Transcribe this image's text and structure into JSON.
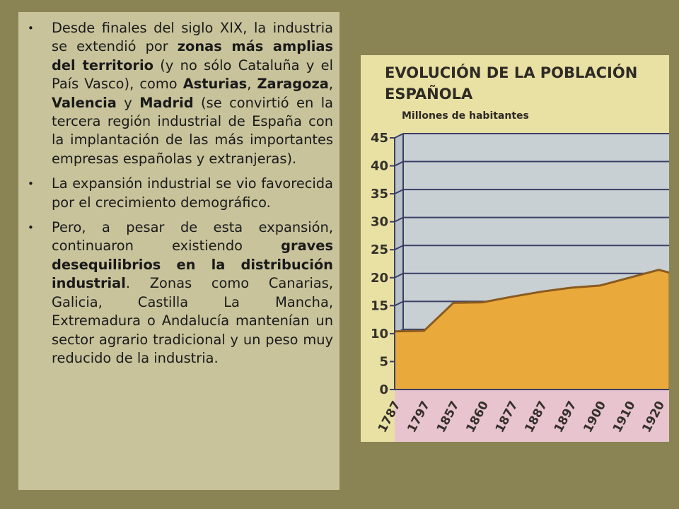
{
  "text": {
    "bullets": [
      {
        "parts": [
          {
            "t": "Desde finales del siglo XIX, la industria se extendió por ",
            "b": false
          },
          {
            "t": "zonas más amplias del territorio",
            "b": true
          },
          {
            "t": " (y no sólo Cataluña y el País Vasco), como ",
            "b": false
          },
          {
            "t": "Asturias",
            "b": true
          },
          {
            "t": ", ",
            "b": false
          },
          {
            "t": "Zaragoza",
            "b": true
          },
          {
            "t": ", ",
            "b": false
          },
          {
            "t": "Valencia",
            "b": true
          },
          {
            "t": " y ",
            "b": false
          },
          {
            "t": "Madrid",
            "b": true
          },
          {
            "t": " (se convirtió en la tercera región industrial de España con la implantación de las más importantes empresas españolas y extranjeras).",
            "b": false
          }
        ]
      },
      {
        "parts": [
          {
            "t": "La expansión industrial se vio favorecida por el crecimiento demográfico.",
            "b": false
          }
        ]
      },
      {
        "parts": [
          {
            "t": "Pero, a pesar de esta expansión, continuaron existiendo ",
            "b": false
          },
          {
            "t": "graves desequilibrios en la distribución industrial",
            "b": true
          },
          {
            "t": ". Zonas como Canarias, Galicia, Castilla La Mancha, Extremadura o Andalucía mantenían un sector agrario tradicional y un peso muy reducido de la industria.",
            "b": false
          }
        ]
      }
    ]
  },
  "chart_data": {
    "type": "area",
    "title": "EVOLUCIÓN DE LA POBLACIÓN ESPAÑOLA",
    "title_lines": [
      "EVOLUCIÓN DE LA POBLACIÓN",
      "ESPAÑOLA"
    ],
    "ylabel": "Millones de habitantes",
    "xlabel": "",
    "categories": [
      "1787",
      "1797",
      "1857",
      "1860",
      "1877",
      "1887",
      "1897",
      "1900",
      "1910",
      "1920"
    ],
    "values": [
      10.4,
      10.5,
      15.5,
      15.6,
      16.6,
      17.5,
      18.2,
      18.6,
      20,
      21.4
    ],
    "y_ticks": [
      0,
      5,
      10,
      15,
      20,
      25,
      30,
      35,
      40,
      45
    ],
    "ylim": [
      0,
      45
    ],
    "grid": true,
    "colors": {
      "fill": "#eaa93b",
      "line": "#8a5a1e",
      "wall": "#c8d0d4",
      "floor": "#e8c4cf",
      "header_bg": "#e9e1a4"
    }
  }
}
